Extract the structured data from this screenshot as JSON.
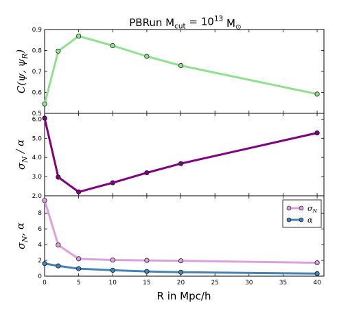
{
  "figure": {
    "title": "PBRun M_cut = 10^13 M_⊙",
    "xlabel": "R in Mpc/h"
  },
  "chart_data": [
    {
      "type": "line",
      "ylabel": "C(ψ, ψ_R)",
      "xlim": [
        0,
        41
      ],
      "ylim": [
        0.5,
        0.9
      ],
      "yticks": [
        "0.5",
        "0.6",
        "0.7",
        "0.8",
        "0.9"
      ],
      "xticks": [
        "0",
        "5",
        "10",
        "15",
        "20",
        "25",
        "30",
        "35",
        "40"
      ],
      "series": [
        {
          "color": "#90e090",
          "marker_fill": "#90e090",
          "x": [
            0,
            2,
            5,
            10,
            15,
            20,
            40
          ],
          "y": [
            0.545,
            0.797,
            0.869,
            0.823,
            0.772,
            0.728,
            0.592
          ]
        }
      ],
      "legend": "none",
      "grid": false
    },
    {
      "type": "line",
      "ylabel": "σ_N / α",
      "xlim": [
        0,
        41
      ],
      "ylim": [
        2.0,
        6.3
      ],
      "yticks": [
        "2.0",
        "3.0",
        "4.0",
        "5.0",
        "6.0"
      ],
      "xticks": [
        "0",
        "5",
        "10",
        "15",
        "20",
        "25",
        "30",
        "35",
        "40"
      ],
      "series": [
        {
          "color": "#800080",
          "marker_fill": "#800080",
          "x": [
            0,
            2,
            5,
            10,
            15,
            20,
            40
          ],
          "y": [
            6.05,
            2.97,
            2.2,
            2.68,
            3.2,
            3.68,
            5.28
          ]
        }
      ],
      "legend": "none",
      "grid": false
    },
    {
      "type": "line",
      "ylabel": "σ_N, α",
      "xlim": [
        0,
        41
      ],
      "ylim": [
        0,
        10.2
      ],
      "yticks": [
        "0",
        "2",
        "4",
        "6",
        "8"
      ],
      "xticks": [
        "0",
        "5",
        "10",
        "15",
        "20",
        "25",
        "30",
        "35",
        "40"
      ],
      "series": [
        {
          "name": "σ_N",
          "color": "#dda0dd",
          "marker_fill": "#dda0dd",
          "x": [
            0,
            2,
            5,
            10,
            15,
            20,
            40
          ],
          "y": [
            9.6,
            3.95,
            2.2,
            2.05,
            2.0,
            1.95,
            1.7
          ]
        },
        {
          "name": "α",
          "color": "#4682b4",
          "marker_fill": "#4682b4",
          "x": [
            0,
            2,
            5,
            10,
            15,
            20,
            40
          ],
          "y": [
            1.6,
            1.3,
            0.95,
            0.75,
            0.6,
            0.5,
            0.32
          ]
        }
      ],
      "legend": "top-right",
      "grid": false
    }
  ]
}
